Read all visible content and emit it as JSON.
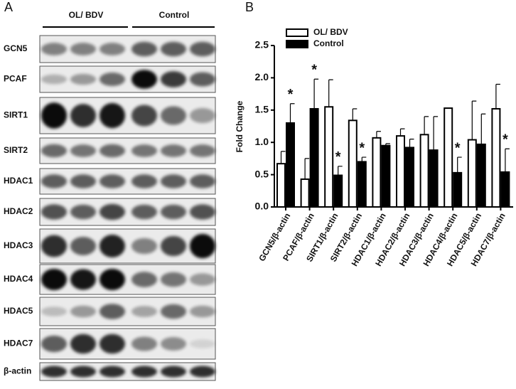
{
  "blot": {
    "panel_label": "A",
    "groups": [
      "OL/ BDV",
      "Control"
    ],
    "rows": [
      "GCN5",
      "PCAF",
      "SIRT1",
      "SIRT2",
      "HDAC1",
      "HDAC2",
      "HDAC3",
      "HDAC4",
      "HDAC5",
      "HDAC7",
      "β-actin"
    ]
  },
  "chart_data": {
    "type": "bar",
    "panel_label": "B",
    "y_label": "Fold Change",
    "categories": [
      "GCN5/β-actin",
      "PCAF/β-actin",
      "SIRT1/β-actin",
      "SIRT2/β-actin",
      "HDAC1/β-actin",
      "HDAC2/β-actin",
      "HDAC3/β-actin",
      "HDAC4/β-actin",
      "HDAC5/β-actin",
      "HDAC7/β-actin"
    ],
    "series": [
      {
        "name": "OL/ BDV",
        "color": "#ffffff",
        "values": [
          0.67,
          0.43,
          1.55,
          1.34,
          1.07,
          1.1,
          1.12,
          1.53,
          1.04,
          1.52
        ],
        "errors": [
          0.19,
          0.32,
          0.42,
          0.18,
          0.1,
          0.11,
          0.28,
          0,
          0.6,
          0.38
        ]
      },
      {
        "name": "Control",
        "color": "#000000",
        "values": [
          1.3,
          1.52,
          0.49,
          0.7,
          0.95,
          0.92,
          0.88,
          0.53,
          0.97,
          0.54
        ],
        "errors": [
          0.3,
          0.46,
          0.14,
          0.07,
          0.03,
          0.13,
          0.52,
          0.24,
          0.47,
          0.36
        ],
        "annotation": "*",
        "annotated": [
          true,
          true,
          true,
          true,
          false,
          false,
          false,
          true,
          false,
          true
        ]
      }
    ],
    "ylim": [
      0,
      2.5
    ],
    "yticks": [
      {
        "value": 0,
        "label": "0.0"
      },
      0.5,
      {
        "value": 1,
        "label": "1.0"
      },
      1.5,
      {
        "value": 2,
        "label": "2.0"
      },
      2.5
    ],
    "legend": "top-left",
    "grid": false
  }
}
